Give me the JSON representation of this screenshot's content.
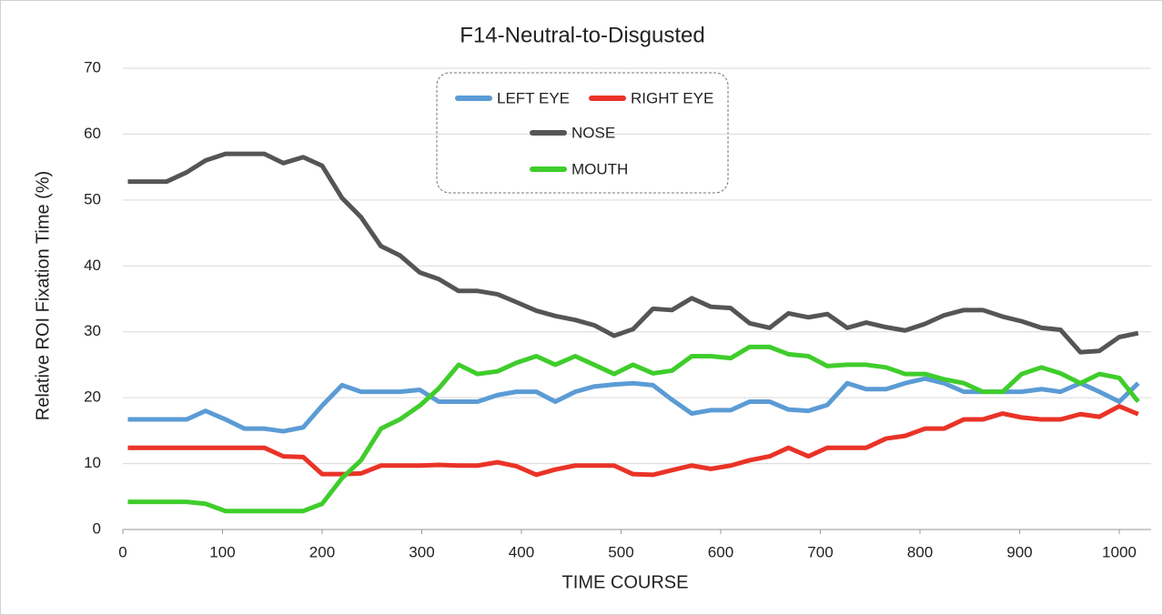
{
  "chart_data": {
    "type": "line",
    "title": "F14-Neutral-to-Disgusted",
    "x_label": "TIME  COURSE",
    "y_label": "Relative  ROI  Fixation  Time  (%)",
    "x": [
      5,
      25,
      44,
      64,
      83,
      103,
      122,
      142,
      161,
      181,
      200,
      220,
      239,
      259,
      278,
      298,
      317,
      337,
      356,
      376,
      395,
      415,
      434,
      454,
      473,
      493,
      512,
      532,
      551,
      571,
      590,
      610,
      629,
      649,
      668,
      688,
      707,
      727,
      746,
      766,
      785,
      805,
      824,
      844,
      863,
      883,
      902,
      922,
      941,
      961,
      980,
      1000,
      1019
    ],
    "series": [
      {
        "name": "LEFT EYE",
        "color": "#5b9bd5",
        "values": [
          16.7,
          16.7,
          16.7,
          16.7,
          18.0,
          16.7,
          15.3,
          15.3,
          14.9,
          15.5,
          18.8,
          21.9,
          20.9,
          20.9,
          20.9,
          21.2,
          19.4,
          19.4,
          19.4,
          20.4,
          20.9,
          20.9,
          19.4,
          20.9,
          21.7,
          22.0,
          22.2,
          21.9,
          19.7,
          17.6,
          18.1,
          18.1,
          19.4,
          19.4,
          18.2,
          18.0,
          18.9,
          22.2,
          21.3,
          21.3,
          22.2,
          22.9,
          22.2,
          20.9,
          20.9,
          20.9,
          20.9,
          21.3,
          20.9,
          22.2,
          20.9,
          19.4,
          22.2
        ]
      },
      {
        "name": "RIGHT EYE",
        "color": "#ea3327",
        "values": [
          12.4,
          12.4,
          12.4,
          12.4,
          12.4,
          12.4,
          12.4,
          12.4,
          11.1,
          11.0,
          8.4,
          8.4,
          8.5,
          9.7,
          9.7,
          9.7,
          9.8,
          9.7,
          9.7,
          10.2,
          9.6,
          8.3,
          9.1,
          9.7,
          9.7,
          9.7,
          8.4,
          8.3,
          9.0,
          9.7,
          9.2,
          9.7,
          10.5,
          11.1,
          12.4,
          11.1,
          12.4,
          12.4,
          12.4,
          13.8,
          14.2,
          15.3,
          15.3,
          16.7,
          16.7,
          17.6,
          17.0,
          16.7,
          16.7,
          17.5,
          17.1,
          18.7,
          17.5
        ]
      },
      {
        "name": "NOSE",
        "color": "#555555",
        "values": [
          52.8,
          52.8,
          52.8,
          54.2,
          56.0,
          57.0,
          57.0,
          57.0,
          55.6,
          56.5,
          55.2,
          50.3,
          47.4,
          43.0,
          41.6,
          39.0,
          38.0,
          36.2,
          36.2,
          35.7,
          34.5,
          33.2,
          32.4,
          31.8,
          31.0,
          29.4,
          30.4,
          33.5,
          33.3,
          35.1,
          33.8,
          33.6,
          31.3,
          30.6,
          32.8,
          32.2,
          32.7,
          30.6,
          31.4,
          30.7,
          30.2,
          31.2,
          32.5,
          33.3,
          33.3,
          32.3,
          31.6,
          30.6,
          30.3,
          26.9,
          27.1,
          29.2,
          29.8
        ]
      },
      {
        "name": "MOUTH",
        "color": "#3fcd2b",
        "values": [
          4.2,
          4.2,
          4.2,
          4.2,
          3.9,
          2.8,
          2.8,
          2.8,
          2.8,
          2.8,
          3.9,
          7.8,
          10.5,
          15.3,
          16.7,
          18.8,
          21.4,
          25.0,
          23.6,
          24.0,
          25.3,
          26.3,
          25.0,
          26.3,
          25.0,
          23.6,
          25.0,
          23.7,
          24.1,
          26.3,
          26.3,
          26.0,
          27.7,
          27.7,
          26.6,
          26.3,
          24.8,
          25.0,
          25.0,
          24.6,
          23.6,
          23.6,
          22.8,
          22.2,
          20.9,
          20.9,
          23.6,
          24.6,
          23.7,
          22.2,
          23.6,
          23.0,
          19.4
        ]
      }
    ],
    "xlim": [
      0,
      1032
    ],
    "xticks": [
      0,
      100,
      200,
      300,
      400,
      500,
      600,
      700,
      800,
      900,
      1000
    ],
    "ylim": [
      0,
      70
    ],
    "yticks": [
      0,
      10,
      20,
      30,
      40,
      50,
      60,
      70
    ],
    "grid": true
  }
}
